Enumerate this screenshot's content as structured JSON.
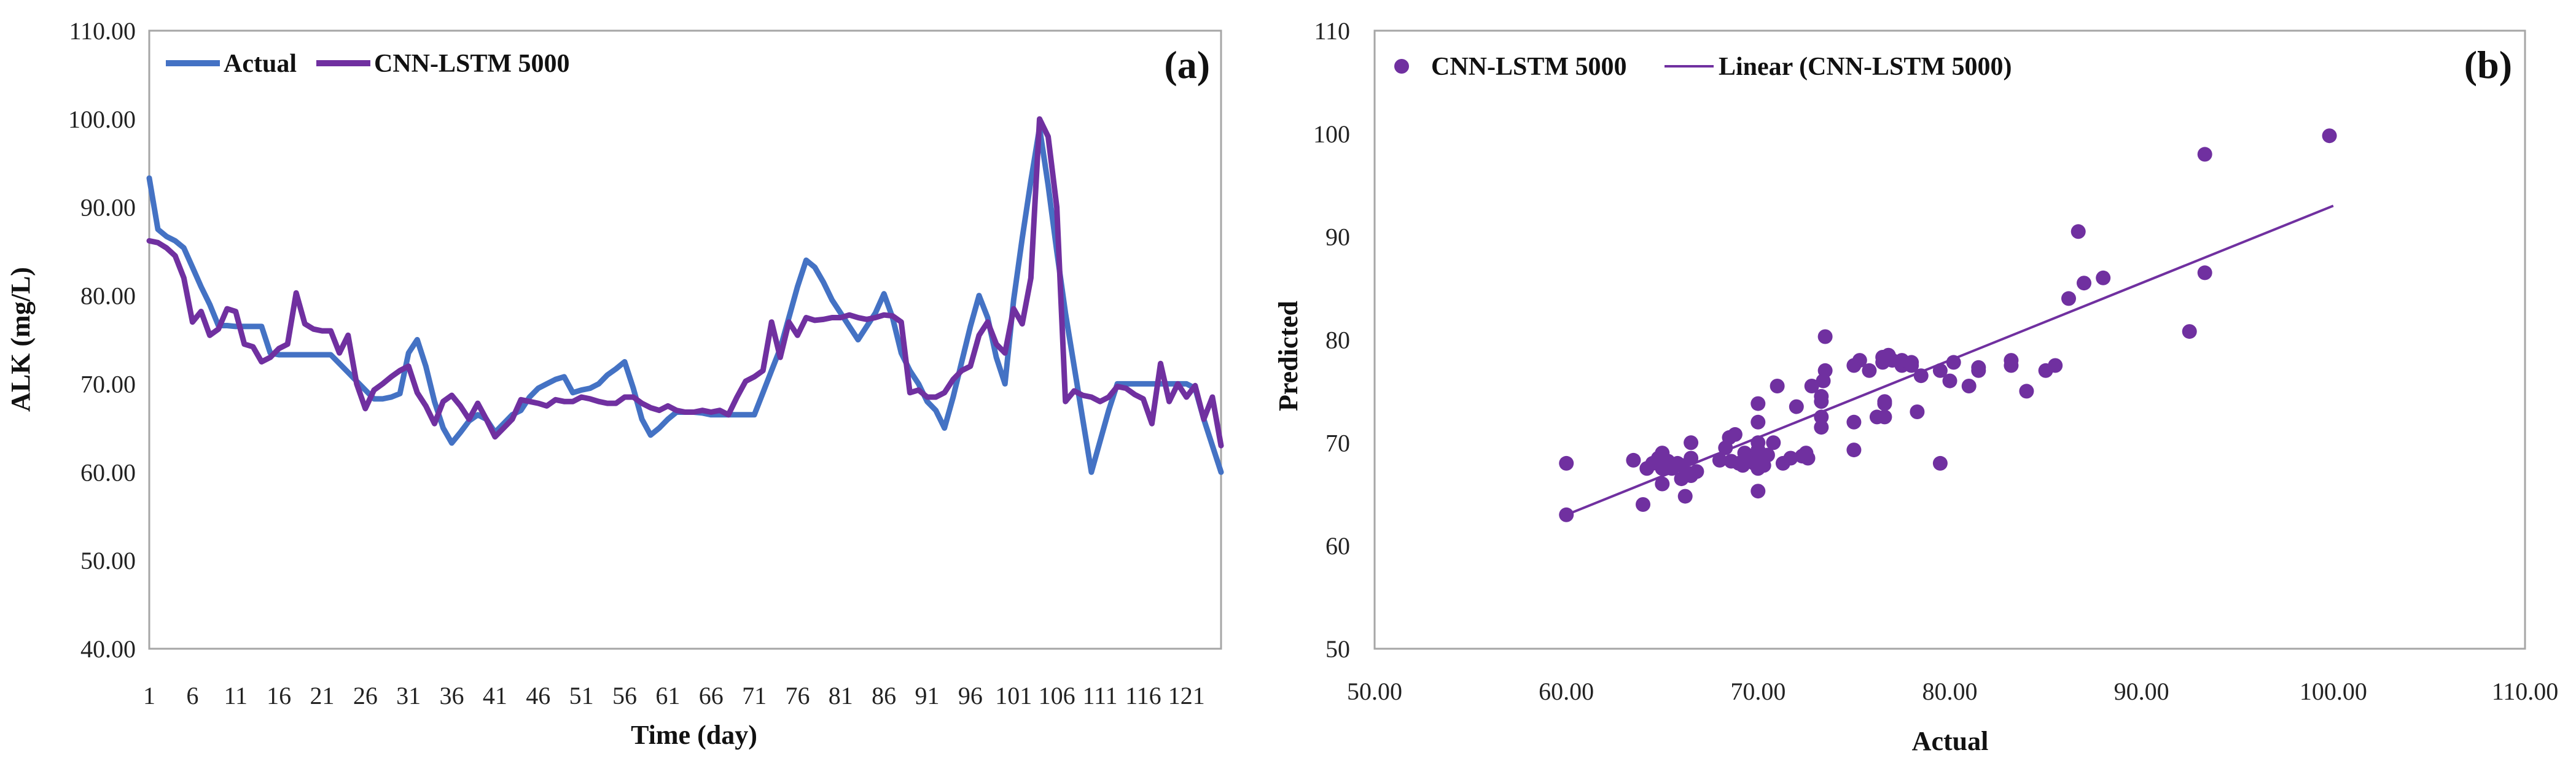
{
  "chart_data": [
    {
      "type": "line",
      "panel_label": "(a)",
      "xlabel": "Time (day)",
      "ylabel": "ALK (mg/L)",
      "ylim": [
        40,
        110
      ],
      "yticks": [
        "40.00",
        "50.00",
        "60.00",
        "70.00",
        "80.00",
        "90.00",
        "100.00",
        "110.00"
      ],
      "xticks": [
        "1",
        "6",
        "11",
        "16",
        "21",
        "26",
        "31",
        "36",
        "41",
        "46",
        "51",
        "56",
        "61",
        "66",
        "71",
        "76",
        "81",
        "86",
        "91",
        "96",
        "101",
        "106",
        "111",
        "116",
        "121"
      ],
      "x": [
        1,
        2,
        3,
        4,
        5,
        6,
        7,
        8,
        9,
        10,
        11,
        12,
        13,
        14,
        15,
        16,
        17,
        18,
        19,
        20,
        21,
        22,
        23,
        24,
        25,
        26,
        27,
        28,
        29,
        30,
        31,
        32,
        33,
        34,
        35,
        36,
        37,
        38,
        39,
        40,
        41,
        42,
        43,
        44,
        45,
        46,
        47,
        48,
        49,
        50,
        51,
        52,
        53,
        54,
        55,
        56,
        57,
        58,
        59,
        60,
        61,
        62,
        63,
        64,
        65,
        66,
        67,
        68,
        69,
        70,
        71,
        72,
        73,
        74,
        75,
        76,
        77,
        78,
        79,
        80,
        81,
        82,
        83,
        84,
        85,
        86,
        87,
        88,
        89,
        90,
        91,
        92,
        93,
        94,
        95,
        96,
        97,
        98,
        99,
        100,
        101,
        102,
        103,
        104,
        105,
        106,
        107,
        108,
        109,
        110,
        111,
        112,
        113,
        114,
        115,
        116,
        117,
        118,
        119,
        120,
        121,
        122,
        123,
        124,
        125
      ],
      "series": [
        {
          "name": "Actual",
          "color": "#4472C4",
          "values": [
            93.3,
            87.5,
            86.7,
            86.2,
            85.4,
            83.2,
            81.0,
            79.0,
            76.6,
            76.6,
            76.5,
            76.5,
            76.5,
            76.5,
            73.5,
            73.3,
            73.3,
            73.3,
            73.3,
            73.3,
            73.3,
            73.3,
            72.3,
            71.3,
            70.3,
            69.3,
            68.3,
            68.3,
            68.5,
            68.9,
            73.5,
            75.0,
            72.0,
            68.0,
            65.0,
            63.3,
            64.5,
            65.8,
            66.5,
            66.0,
            64.5,
            65.5,
            66.5,
            67.0,
            68.5,
            69.5,
            70.0,
            70.5,
            70.8,
            69.0,
            69.3,
            69.5,
            70.0,
            71.0,
            71.7,
            72.5,
            69.5,
            66.0,
            64.2,
            65.0,
            66.0,
            66.8,
            66.8,
            66.8,
            66.7,
            66.5,
            66.5,
            66.5,
            66.5,
            66.5,
            66.5,
            69.0,
            71.5,
            74.0,
            77.5,
            81.0,
            84.0,
            83.2,
            81.5,
            79.5,
            78.0,
            76.5,
            75.0,
            76.5,
            78.0,
            80.2,
            77.5,
            73.5,
            71.5,
            70.0,
            68.0,
            67.0,
            65.0,
            68.5,
            72.5,
            76.5,
            80.0,
            77.5,
            73.0,
            70.0,
            79.5,
            86.5,
            93.0,
            99.0,
            92.5,
            85.0,
            78.0,
            72.0,
            66.0,
            60.0,
            63.5,
            67.0,
            70.0,
            70.0,
            70.0,
            70.0,
            70.0,
            70.0,
            70.0,
            70.0,
            70.0,
            69.5,
            66.0,
            63.0,
            60.0
          ]
        },
        {
          "name": "CNN-LSTM 5000",
          "color": "#7030A0",
          "values": [
            86.2,
            86.0,
            85.4,
            84.5,
            82.0,
            77.0,
            78.2,
            75.5,
            76.2,
            78.5,
            78.2,
            74.5,
            74.2,
            72.5,
            73.0,
            74.0,
            74.5,
            80.3,
            76.8,
            76.2,
            76.0,
            76.0,
            73.5,
            75.5,
            70.0,
            67.2,
            69.3,
            70.0,
            70.8,
            71.5,
            72.0,
            69.0,
            67.5,
            65.5,
            68.0,
            68.7,
            67.5,
            66.0,
            67.8,
            66.0,
            64.0,
            65.0,
            66.0,
            68.2,
            68.0,
            67.8,
            67.5,
            68.2,
            68.0,
            68.0,
            68.5,
            68.3,
            68.0,
            67.8,
            67.8,
            68.5,
            68.5,
            67.8,
            67.3,
            67.0,
            67.5,
            67.0,
            66.8,
            66.8,
            67.0,
            66.8,
            67.0,
            66.5,
            68.5,
            70.3,
            70.8,
            71.5,
            77.0,
            73.0,
            77.0,
            75.5,
            77.5,
            77.2,
            77.3,
            77.5,
            77.5,
            77.8,
            77.5,
            77.3,
            77.5,
            77.8,
            77.7,
            77.0,
            69.0,
            69.3,
            68.5,
            68.5,
            69.0,
            70.5,
            71.5,
            72.0,
            75.5,
            77.0,
            74.5,
            73.5,
            78.5,
            76.8,
            82.0,
            100.0,
            98.0,
            90.0,
            68.0,
            69.2,
            68.7,
            68.5,
            68.0,
            68.5,
            69.7,
            69.5,
            68.8,
            68.3,
            65.5,
            72.3,
            68.0,
            70.0,
            68.5,
            69.8,
            66.0,
            68.5,
            63.0
          ]
        }
      ]
    },
    {
      "type": "scatter",
      "panel_label": "(b)",
      "xlabel": "Actual",
      "ylabel": "Predicted",
      "xlim": [
        50,
        110
      ],
      "ylim": [
        50,
        110
      ],
      "xticks": [
        "50.00",
        "60.00",
        "70.00",
        "80.00",
        "90.00",
        "100.00",
        "110.00"
      ],
      "yticks": [
        "50",
        "60",
        "70",
        "80",
        "90",
        "100",
        "110"
      ],
      "series": [
        {
          "name": "CNN-LSTM 5000",
          "color": "#7030A0",
          "points": [
            [
              60.0,
              63.0
            ],
            [
              60.0,
              68.0
            ],
            [
              63.5,
              68.3
            ],
            [
              64.0,
              64.0
            ],
            [
              64.2,
              67.5
            ],
            [
              64.5,
              68.0
            ],
            [
              64.8,
              68.5
            ],
            [
              65.0,
              66.0
            ],
            [
              65.0,
              67.5
            ],
            [
              65.0,
              69.0
            ],
            [
              65.3,
              68.2
            ],
            [
              65.5,
              67.5
            ],
            [
              65.8,
              68.0
            ],
            [
              66.0,
              67.8
            ],
            [
              66.0,
              66.5
            ],
            [
              66.2,
              64.8
            ],
            [
              66.5,
              66.8
            ],
            [
              66.5,
              67.0
            ],
            [
              66.5,
              68.5
            ],
            [
              66.5,
              70.0
            ],
            [
              66.8,
              67.2
            ],
            [
              68.0,
              68.3
            ],
            [
              68.3,
              69.5
            ],
            [
              68.5,
              70.5
            ],
            [
              68.6,
              68.2
            ],
            [
              68.8,
              70.8
            ],
            [
              69.0,
              68.0
            ],
            [
              69.2,
              67.8
            ],
            [
              69.3,
              69.0
            ],
            [
              69.5,
              68.5
            ],
            [
              69.8,
              68.0
            ],
            [
              70.0,
              65.3
            ],
            [
              70.0,
              67.5
            ],
            [
              70.0,
              68.0
            ],
            [
              70.0,
              69.3
            ],
            [
              70.0,
              70.0
            ],
            [
              70.0,
              72.0
            ],
            [
              70.0,
              73.8
            ],
            [
              70.1,
              68.5
            ],
            [
              70.3,
              67.8
            ],
            [
              70.5,
              68.8
            ],
            [
              70.8,
              70.0
            ],
            [
              71.0,
              75.5
            ],
            [
              71.3,
              68.0
            ],
            [
              71.7,
              68.5
            ],
            [
              72.0,
              73.5
            ],
            [
              72.3,
              68.7
            ],
            [
              72.5,
              69.0
            ],
            [
              72.6,
              68.5
            ],
            [
              72.8,
              75.5
            ],
            [
              73.3,
              71.5
            ],
            [
              73.3,
              72.5
            ],
            [
              73.3,
              74.0
            ],
            [
              73.3,
              74.5
            ],
            [
              73.4,
              76.0
            ],
            [
              73.5,
              77.0
            ],
            [
              73.5,
              80.3
            ],
            [
              75.0,
              69.3
            ],
            [
              75.0,
              72.0
            ],
            [
              75.0,
              77.5
            ],
            [
              75.3,
              78.0
            ],
            [
              75.8,
              77.0
            ],
            [
              76.2,
              72.5
            ],
            [
              76.5,
              77.8
            ],
            [
              76.5,
              78.3
            ],
            [
              76.6,
              72.5
            ],
            [
              76.6,
              73.8
            ],
            [
              76.6,
              74.0
            ],
            [
              76.8,
              78.5
            ],
            [
              77.0,
              78.0
            ],
            [
              77.5,
              77.5
            ],
            [
              77.5,
              78.0
            ],
            [
              78.0,
              77.5
            ],
            [
              78.0,
              77.8
            ],
            [
              78.3,
              73.0
            ],
            [
              78.5,
              76.5
            ],
            [
              79.5,
              68.0
            ],
            [
              79.5,
              77.0
            ],
            [
              80.0,
              76.0
            ],
            [
              80.2,
              77.8
            ],
            [
              81.0,
              75.5
            ],
            [
              81.5,
              77.0
            ],
            [
              81.5,
              77.3
            ],
            [
              83.2,
              78.0
            ],
            [
              83.2,
              77.5
            ],
            [
              84.0,
              75.0
            ],
            [
              85.0,
              77.0
            ],
            [
              85.5,
              77.5
            ],
            [
              86.2,
              84.0
            ],
            [
              86.7,
              90.5
            ],
            [
              87.0,
              85.5
            ],
            [
              88.0,
              86.0
            ],
            [
              92.5,
              80.8
            ],
            [
              93.3,
              98.0
            ],
            [
              93.3,
              86.5
            ],
            [
              99.8,
              99.8
            ]
          ]
        }
      ],
      "trendline": {
        "name": "Linear (CNN-LSTM 5000)",
        "color": "#7030A0",
        "x_range": [
          60,
          100
        ],
        "y_range": [
          63.0,
          93.0
        ]
      }
    }
  ]
}
